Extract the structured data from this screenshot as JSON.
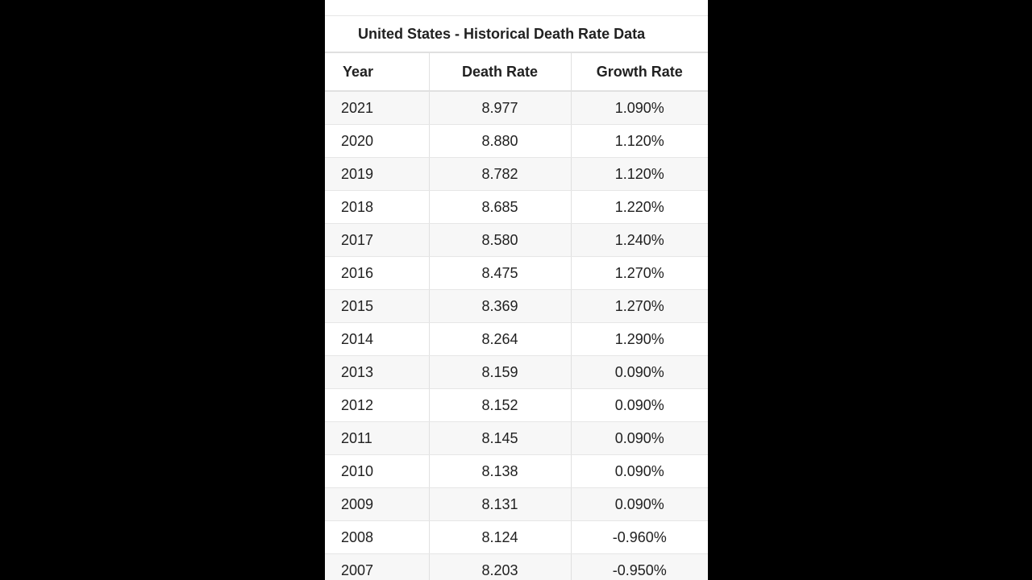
{
  "table": {
    "title": "United States - Historical Death Rate Data",
    "headers": [
      "Year",
      "Death Rate",
      "Growth Rate"
    ],
    "rows": [
      [
        "2021",
        "8.977",
        "1.090%"
      ],
      [
        "2020",
        "8.880",
        "1.120%"
      ],
      [
        "2019",
        "8.782",
        "1.120%"
      ],
      [
        "2018",
        "8.685",
        "1.220%"
      ],
      [
        "2017",
        "8.580",
        "1.240%"
      ],
      [
        "2016",
        "8.475",
        "1.270%"
      ],
      [
        "2015",
        "8.369",
        "1.270%"
      ],
      [
        "2014",
        "8.264",
        "1.290%"
      ],
      [
        "2013",
        "8.159",
        "0.090%"
      ],
      [
        "2012",
        "8.152",
        "0.090%"
      ],
      [
        "2011",
        "8.145",
        "0.090%"
      ],
      [
        "2010",
        "8.138",
        "0.090%"
      ],
      [
        "2009",
        "8.131",
        "0.090%"
      ],
      [
        "2008",
        "8.124",
        "-0.960%"
      ],
      [
        "2007",
        "8.203",
        "-0.950%"
      ]
    ]
  },
  "colors": {
    "background": "#000000",
    "panel": "#ffffff",
    "stripe": "#f7f7f7",
    "border": "#e0e0e0",
    "text": "#212121"
  }
}
